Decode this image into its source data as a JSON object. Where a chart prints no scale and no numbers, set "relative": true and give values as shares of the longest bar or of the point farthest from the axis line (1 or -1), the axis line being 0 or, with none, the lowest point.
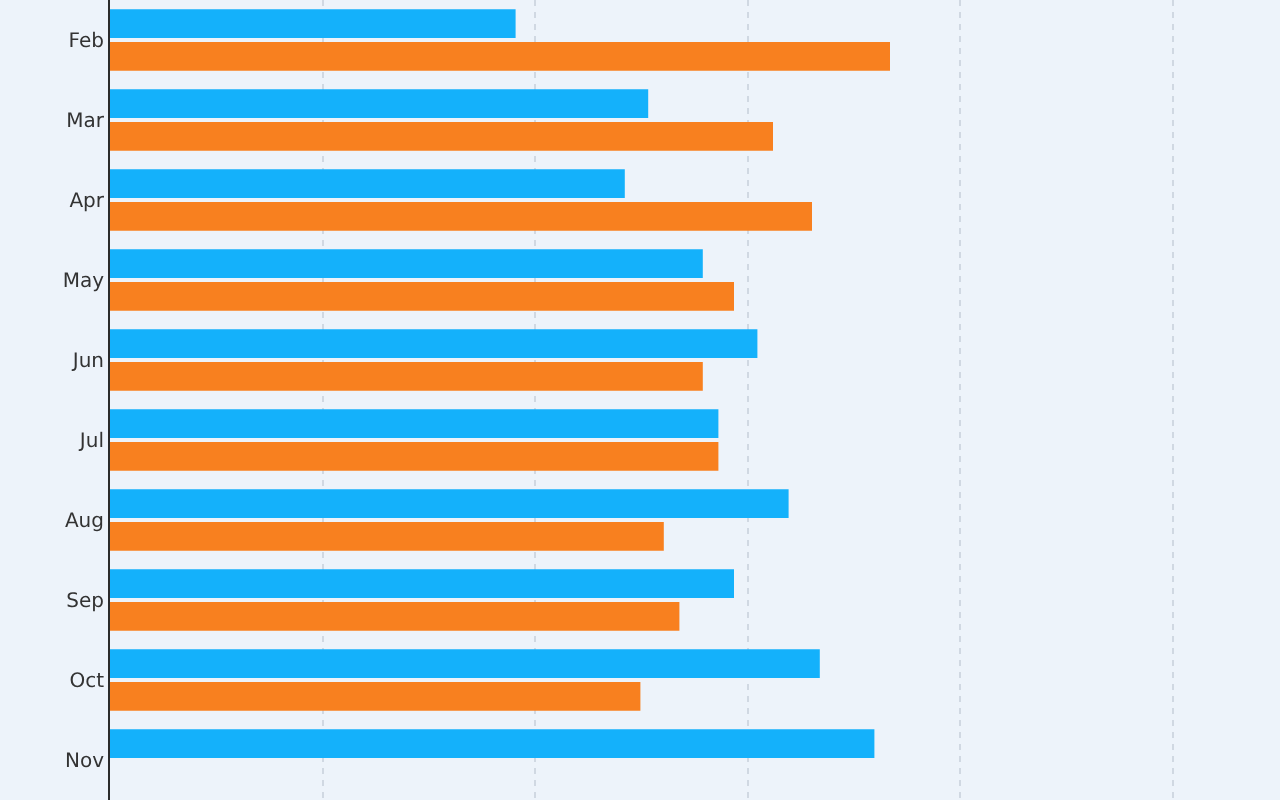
{
  "chart_data": {
    "type": "bar",
    "orientation": "horizontal",
    "relative": true,
    "grid": "x",
    "legend": false,
    "categories": [
      "Feb",
      "Mar",
      "Apr",
      "May",
      "Jun",
      "Jul",
      "Aug",
      "Sep",
      "Oct",
      "Nov"
    ],
    "series": [
      {
        "color": "#14b1fb",
        "values": [
          0.52,
          0.69,
          0.66,
          0.76,
          0.83,
          0.78,
          0.87,
          0.8,
          0.91,
          0.98
        ]
      },
      {
        "color": "#f8801f",
        "values": [
          1.0,
          0.85,
          0.9,
          0.8,
          0.76,
          0.78,
          0.71,
          0.73,
          0.68,
          null
        ]
      }
    ]
  }
}
